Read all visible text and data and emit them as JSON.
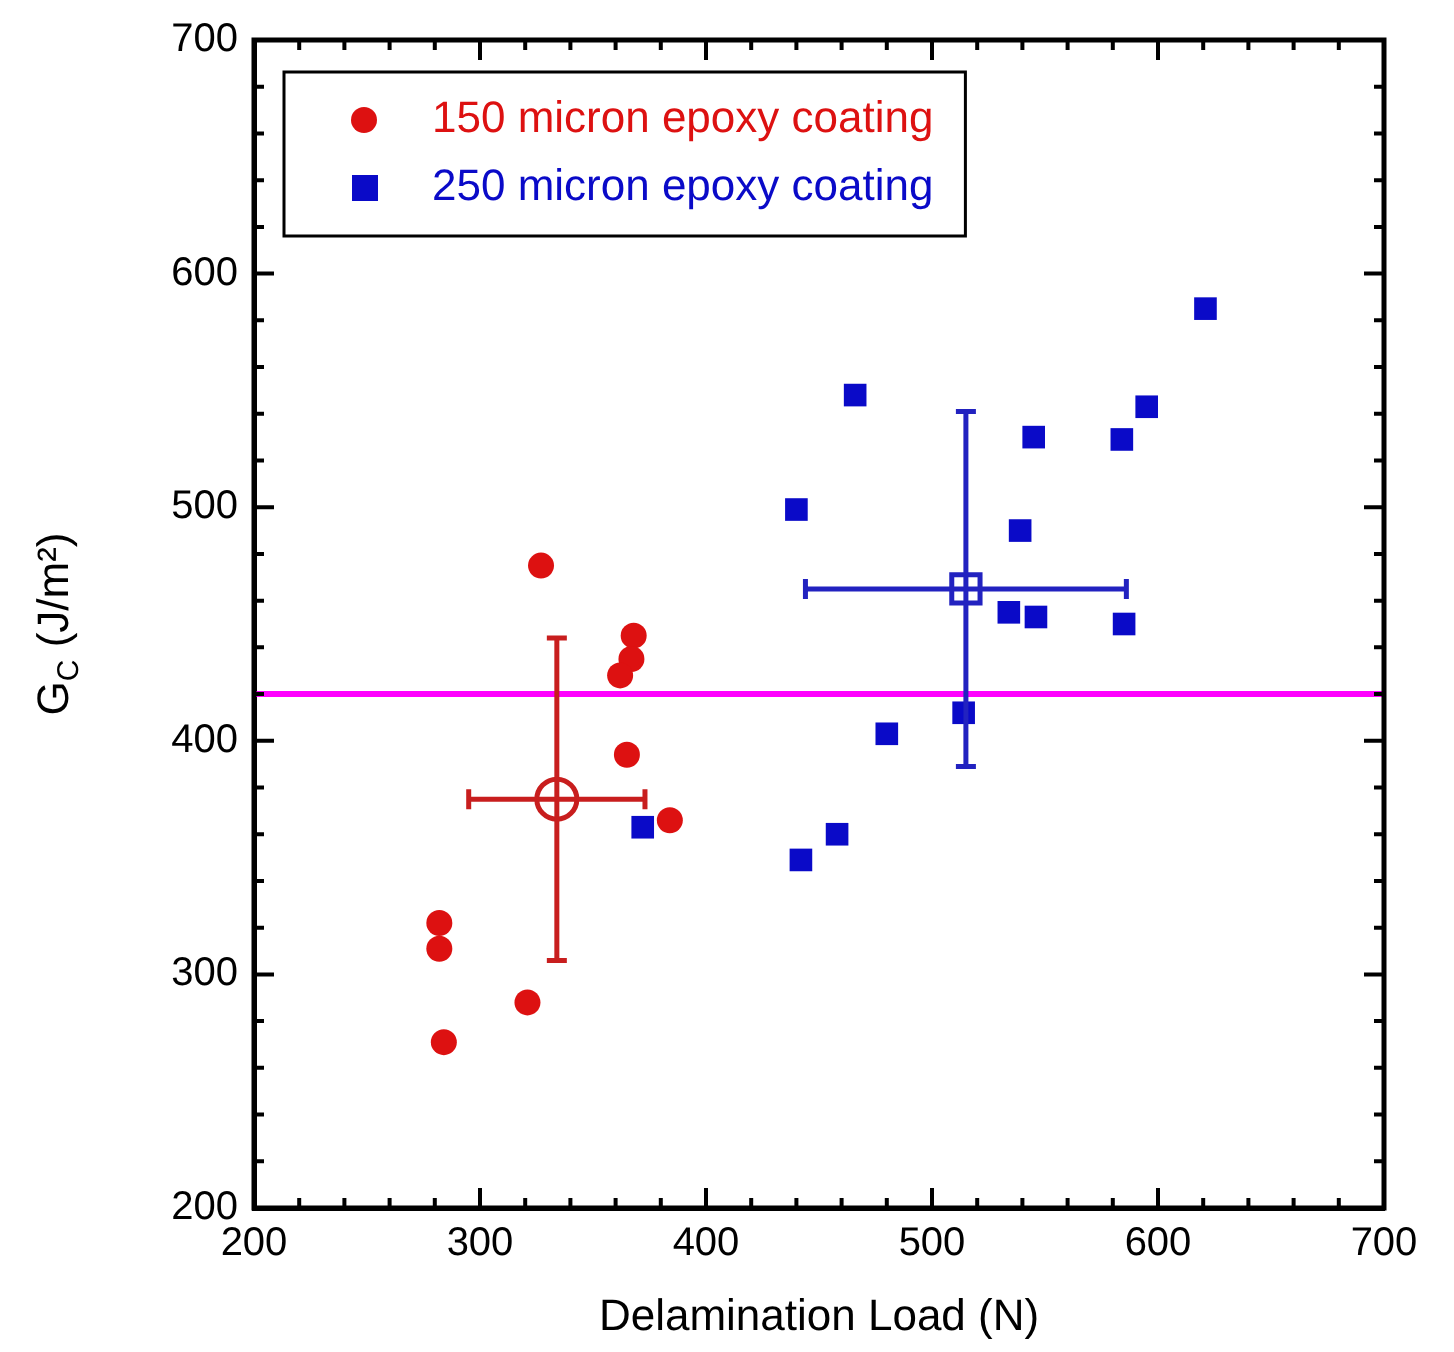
{
  "chart_data": {
    "type": "scatter",
    "xlabel": "Delamination Load (N)",
    "ylabel": "G$_{C}$ (J/m²)",
    "xlim": [
      200,
      700
    ],
    "ylim": [
      200,
      700
    ],
    "xticks": [
      200,
      {
        "value": 220,
        "label": null
      },
      {
        "value": 240,
        "label": null
      },
      {
        "value": 260,
        "label": null
      },
      {
        "value": 280,
        "label": null
      },
      300,
      {
        "value": 320,
        "label": null
      },
      {
        "value": 340,
        "label": null
      },
      {
        "value": 360,
        "label": null
      },
      {
        "value": 380,
        "label": null
      },
      400,
      {
        "value": 420,
        "label": null
      },
      {
        "value": 440,
        "label": null
      },
      {
        "value": 460,
        "label": null
      },
      {
        "value": 480,
        "label": null
      },
      500,
      {
        "value": 520,
        "label": null
      },
      {
        "value": 540,
        "label": null
      },
      {
        "value": 560,
        "label": null
      },
      {
        "value": 580,
        "label": null
      },
      600,
      {
        "value": 620,
        "label": null
      },
      {
        "value": 640,
        "label": null
      },
      {
        "value": 660,
        "label": null
      },
      {
        "value": 680,
        "label": null
      },
      700
    ],
    "yticks": [
      200,
      {
        "value": 220,
        "label": null
      },
      {
        "value": 240,
        "label": null
      },
      {
        "value": 260,
        "label": null
      },
      {
        "value": 280,
        "label": null
      },
      300,
      {
        "value": 320,
        "label": null
      },
      {
        "value": 340,
        "label": null
      },
      {
        "value": 360,
        "label": null
      },
      {
        "value": 380,
        "label": null
      },
      400,
      {
        "value": 420,
        "label": null
      },
      {
        "value": 440,
        "label": null
      },
      {
        "value": 460,
        "label": null
      },
      {
        "value": 480,
        "label": null
      },
      500,
      {
        "value": 520,
        "label": null
      },
      {
        "value": 540,
        "label": null
      },
      {
        "value": 560,
        "label": null
      },
      {
        "value": 580,
        "label": null
      },
      600,
      {
        "value": 620,
        "label": null
      },
      {
        "value": 640,
        "label": null
      },
      {
        "value": 660,
        "label": null
      },
      {
        "value": 680,
        "label": null
      },
      700
    ],
    "grid": false,
    "legend": "top left",
    "ref_lines": [
      {
        "axis": "y",
        "value": 420,
        "color": "#ff00ff"
      }
    ],
    "series": [
      {
        "name": "150 micron epoxy coating",
        "color": "#dd1111",
        "marker": "circle",
        "x": [
          327,
          368,
          367,
          362,
          365,
          384,
          282,
          282,
          321,
          284
        ],
        "values": [
          475,
          445,
          435,
          428,
          394,
          366,
          322,
          311,
          288,
          271
        ]
      },
      {
        "name": "250 micron epoxy coating",
        "color": "#0a0ac8",
        "marker": "square",
        "x": [
          372,
          621,
          466,
          595,
          545,
          584,
          440,
          539,
          534,
          546,
          585,
          514,
          480,
          458,
          442
        ],
        "values": [
          363,
          585,
          548,
          543,
          530,
          529,
          499,
          490,
          455,
          453,
          450,
          412,
          403,
          360,
          349
        ]
      },
      {
        "color": "#c81e1e",
        "marker": "circle",
        "x": [
          334
        ],
        "values": [
          375
        ],
        "errors": [
          69
        ],
        "xerrors": [
          39
        ]
      },
      {
        "color": "#2222c0",
        "marker": "square",
        "x": [
          515
        ],
        "values": [
          465
        ],
        "errors": [
          76
        ],
        "xerrors": [
          71
        ]
      }
    ]
  }
}
